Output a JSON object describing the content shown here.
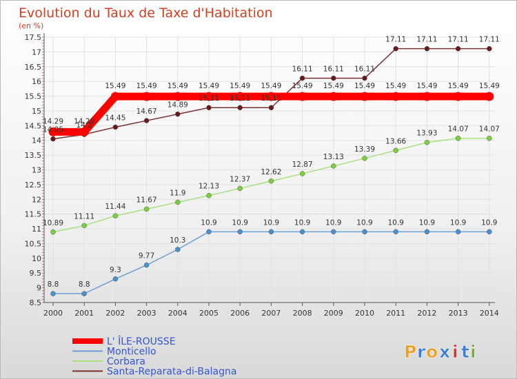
{
  "chart_data": {
    "type": "line",
    "title": "Evolution du Taux de Taxe d'Habitation",
    "subtitle": "(en %)",
    "x": [
      "2000",
      "2001",
      "2002",
      "2003",
      "2004",
      "2005",
      "2006",
      "2007",
      "2008",
      "2009",
      "2010",
      "2011",
      "2012",
      "2013",
      "2014"
    ],
    "yticks": [
      "8.5",
      "9",
      "9.5",
      "10",
      "10.5",
      "11",
      "11.5",
      "12",
      "12.5",
      "13",
      "13.5",
      "14",
      "14.5",
      "15",
      "15.5",
      "16",
      "16.5",
      "17",
      "17.5"
    ],
    "ylim": [
      8.5,
      17.5
    ],
    "grid": true,
    "legend_position": "bottom-left",
    "series": [
      {
        "name": "L' ÎLE-ROUSSE",
        "color": "#ff0000",
        "marker": "#ff0000",
        "values": [
          14.29,
          14.29,
          15.49,
          15.49,
          15.49,
          15.49,
          15.49,
          15.49,
          15.49,
          15.49,
          15.49,
          15.49,
          15.49,
          15.49,
          15.49
        ]
      },
      {
        "name": "Monticello",
        "color": "#6a9fd4",
        "marker": "#4a8fd0",
        "values": [
          8.8,
          8.8,
          9.3,
          9.77,
          10.3,
          10.9,
          10.9,
          10.9,
          10.9,
          10.9,
          10.9,
          10.9,
          10.9,
          10.9,
          10.9
        ]
      },
      {
        "name": "Corbara",
        "color": "#a8e080",
        "marker": "#7cd040",
        "values": [
          10.89,
          11.11,
          11.44,
          11.67,
          11.9,
          12.13,
          12.37,
          12.62,
          12.87,
          13.13,
          13.39,
          13.66,
          13.93,
          14.07,
          14.07
        ]
      },
      {
        "name": "Santa-Reparata-di-Balagna",
        "color": "#7a3030",
        "marker": "#6a1a1a",
        "values": [
          14.05,
          14.2,
          14.45,
          14.67,
          14.89,
          15.11,
          15.11,
          15.11,
          16.11,
          16.11,
          16.11,
          17.11,
          17.11,
          17.11,
          17.11
        ]
      }
    ]
  },
  "brand": {
    "letters": [
      "P",
      "r",
      "o",
      "x",
      "i",
      "t",
      "i"
    ],
    "colors": [
      "#e8a020",
      "#3a7ed8",
      "#e8a020",
      "#3a7ed8",
      "#e03030",
      "#3a7ed8",
      "#70b030"
    ]
  }
}
